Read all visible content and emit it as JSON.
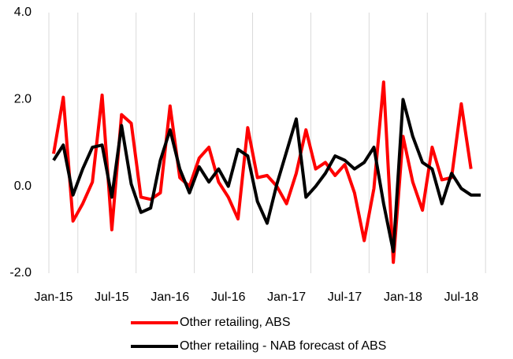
{
  "chart_data": {
    "type": "line",
    "categories": [
      "Jan-15",
      null,
      null,
      null,
      null,
      null,
      "Jul-15",
      null,
      null,
      null,
      null,
      null,
      "Jan-16",
      null,
      null,
      null,
      null,
      null,
      "Jul-16",
      null,
      null,
      null,
      null,
      null,
      "Jan-17",
      null,
      null,
      null,
      null,
      null,
      "Jul-17",
      null,
      null,
      null,
      null,
      null,
      "Jan-18",
      null,
      null,
      null,
      null,
      null,
      "Jul-18",
      null,
      null
    ],
    "series": [
      {
        "name": "Other retailing, ABS",
        "color": "#ff0000",
        "values": [
          0.75,
          2.05,
          -0.8,
          -0.4,
          0.1,
          2.1,
          -1.0,
          1.65,
          1.45,
          -0.25,
          -0.3,
          -0.15,
          1.85,
          0.2,
          0.0,
          0.65,
          0.9,
          0.1,
          -0.25,
          -0.75,
          1.35,
          0.2,
          0.25,
          0.0,
          -0.4,
          0.3,
          1.3,
          0.4,
          0.55,
          0.25,
          0.5,
          -0.15,
          -1.25,
          -0.05,
          2.4,
          -1.75,
          1.15,
          0.1,
          -0.55,
          0.9,
          0.15,
          0.2,
          1.9,
          0.4,
          null
        ]
      },
      {
        "name": "Other retailing - NAB forecast of ABS",
        "color": "#000000",
        "values": [
          0.6,
          0.95,
          -0.2,
          0.4,
          0.9,
          0.95,
          -0.25,
          1.4,
          0.05,
          -0.6,
          -0.5,
          0.6,
          1.3,
          0.4,
          -0.15,
          0.45,
          0.1,
          0.4,
          0.0,
          0.85,
          0.7,
          -0.35,
          -0.85,
          0.05,
          0.8,
          1.55,
          -0.25,
          0.0,
          0.3,
          0.7,
          0.6,
          0.4,
          0.55,
          0.9,
          -0.4,
          -1.5,
          2.0,
          1.15,
          0.55,
          0.4,
          -0.4,
          0.3,
          -0.05,
          -0.2,
          -0.2
        ]
      }
    ],
    "ylim": [
      -2,
      4
    ],
    "yticks": [
      {
        "value": -2,
        "label": "-2.0"
      },
      {
        "value": 0,
        "label": "0.0"
      },
      {
        "value": 2,
        "label": "2.0"
      },
      {
        "value": 4,
        "label": "4.0"
      }
    ],
    "grid": "x",
    "legend": "bottom"
  }
}
